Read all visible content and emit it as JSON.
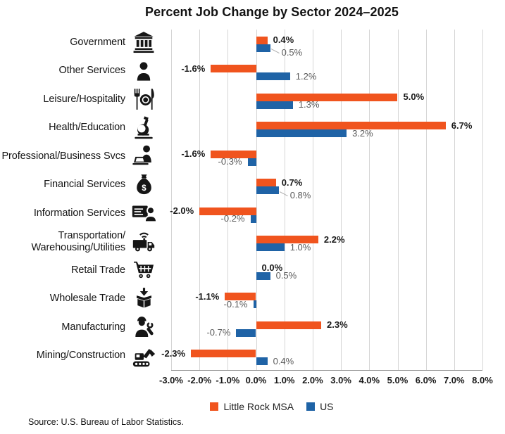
{
  "title": "Percent Job Change by Sector 2024–2025",
  "source": "Source: U.S. Bureau of Labor Statistics.",
  "legend": {
    "msa": {
      "label": "Little Rock MSA",
      "color": "#F0541E"
    },
    "us": {
      "label": "US",
      "color": "#1F63A6"
    }
  },
  "colors": {
    "msa_bar": "#F0541E",
    "us_bar": "#1F63A6",
    "dark_label": "#1A1A1A",
    "gray_label": "#5B5B5B",
    "gridline": "#D5D5D5",
    "axis_line": "#8F8F8F"
  },
  "chart_data": {
    "type": "bar",
    "orientation": "horizontal",
    "title": "Percent Job Change by Sector 2024–2025",
    "xlabel": "",
    "ylabel": "",
    "xlim": [
      -3,
      8
    ],
    "grid": true,
    "legend_position": "bottom",
    "x_ticks": [
      "-3.0%",
      "-2.0%",
      "-1.0%",
      "0.0%",
      "1.0%",
      "2.0%",
      "3.0%",
      "4.0%",
      "5.0%",
      "6.0%",
      "7.0%",
      "8.0%"
    ],
    "series": [
      {
        "name": "Little Rock MSA",
        "color": "#F0541E"
      },
      {
        "name": "US",
        "color": "#1F63A6"
      }
    ],
    "categories": [
      {
        "label": "Government",
        "icon": "bank-icon",
        "msa": 0.4,
        "msa_label": "0.4%",
        "us": 0.5,
        "us_label": "0.5%",
        "us_leader": true
      },
      {
        "label": "Other Services",
        "icon": "person-icon",
        "msa": -1.6,
        "msa_label": "-1.6%",
        "us": 1.2,
        "us_label": "1.2%"
      },
      {
        "label": "Leisure/Hospitality",
        "icon": "restaurant-icon",
        "msa": 5.0,
        "msa_label": "5.0%",
        "us": 1.3,
        "us_label": "1.3%"
      },
      {
        "label": "Health/Education",
        "icon": "microscope-icon",
        "msa": 6.7,
        "msa_label": "6.7%",
        "us": 3.2,
        "us_label": "3.2%"
      },
      {
        "label": "Professional/Business Svcs",
        "icon": "person-laptop-icon",
        "msa": -1.6,
        "msa_label": "-1.6%",
        "us": -0.3,
        "us_label": "-0.3%"
      },
      {
        "label": "Financial Services",
        "icon": "money-bag-icon",
        "msa": 0.7,
        "msa_label": "0.7%",
        "us": 0.8,
        "us_label": "0.8%",
        "us_leader": true
      },
      {
        "label": "Information Services",
        "icon": "screen-person-icon",
        "msa": -2.0,
        "msa_label": "-2.0%",
        "us": -0.2,
        "us_label": "-0.2%"
      },
      {
        "label": "Transportation/\nWarehousing/Utilities",
        "icon": "delivery-truck-icon",
        "msa": 2.2,
        "msa_label": "2.2%",
        "us": 1.0,
        "us_label": "1.0%"
      },
      {
        "label": "Retail Trade",
        "icon": "shopping-cart-icon",
        "msa": 0.0,
        "msa_label": "0.0%",
        "us": 0.5,
        "us_label": "0.5%"
      },
      {
        "label": "Wholesale Trade",
        "icon": "open-box-icon",
        "msa": -1.1,
        "msa_label": "-1.1%",
        "us": -0.1,
        "us_label": "-0.1%"
      },
      {
        "label": "Manufacturing",
        "icon": "worker-icon",
        "msa": 2.3,
        "msa_label": "2.3%",
        "us": -0.7,
        "us_label": "-0.7%"
      },
      {
        "label": "Mining/Construction",
        "icon": "excavator-icon",
        "msa": -2.3,
        "msa_label": "-2.3%",
        "us": 0.4,
        "us_label": "0.4%"
      }
    ]
  }
}
